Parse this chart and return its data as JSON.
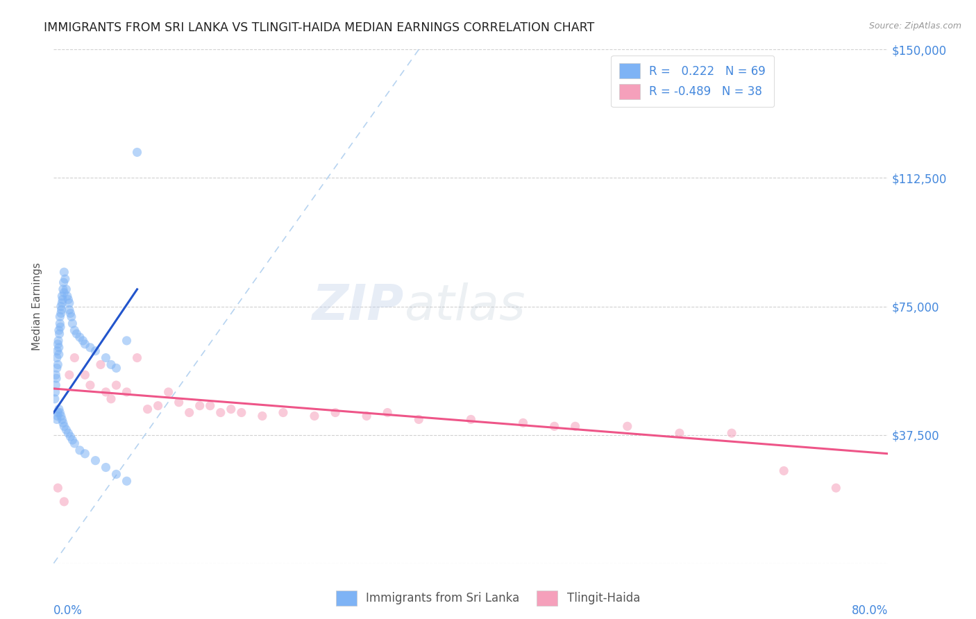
{
  "title": "IMMIGRANTS FROM SRI LANKA VS TLINGIT-HAIDA MEDIAN EARNINGS CORRELATION CHART",
  "source": "Source: ZipAtlas.com",
  "ylabel": "Median Earnings",
  "yticks": [
    0,
    37500,
    75000,
    112500,
    150000
  ],
  "ytick_labels": [
    "",
    "$37,500",
    "$75,000",
    "$112,500",
    "$150,000"
  ],
  "xmin": 0.0,
  "xmax": 80.0,
  "ymin": 0,
  "ymax": 150000,
  "legend_label1": "Immigrants from Sri Lanka",
  "legend_label2": "Tlingit-Haida",
  "R1": 0.222,
  "N1": 69,
  "R2": -0.489,
  "N2": 38,
  "color_blue": "#7EB3F5",
  "color_pink": "#F5A0BB",
  "color_blue_line": "#2255CC",
  "color_pink_line": "#EE5588",
  "color_diag_line": "#AACCEE",
  "title_color": "#222222",
  "axis_label_color": "#4488DD",
  "blue_dots_x": [
    0.1,
    0.15,
    0.2,
    0.2,
    0.25,
    0.3,
    0.3,
    0.35,
    0.4,
    0.4,
    0.45,
    0.5,
    0.5,
    0.5,
    0.55,
    0.6,
    0.6,
    0.65,
    0.7,
    0.7,
    0.75,
    0.8,
    0.8,
    0.85,
    0.9,
    0.95,
    1.0,
    1.0,
    1.1,
    1.2,
    1.3,
    1.4,
    1.5,
    1.5,
    1.6,
    1.7,
    1.8,
    2.0,
    2.2,
    2.5,
    2.8,
    3.0,
    3.5,
    4.0,
    5.0,
    5.5,
    6.0,
    7.0,
    0.3,
    0.35,
    0.4,
    0.5,
    0.6,
    0.7,
    0.8,
    0.9,
    1.0,
    1.2,
    1.4,
    1.6,
    1.8,
    2.0,
    2.5,
    3.0,
    4.0,
    5.0,
    6.0,
    7.0,
    8.0
  ],
  "blue_dots_y": [
    48000,
    50000,
    52000,
    55000,
    54000,
    57000,
    60000,
    62000,
    58000,
    64000,
    65000,
    63000,
    61000,
    68000,
    67000,
    70000,
    72000,
    69000,
    73000,
    75000,
    74000,
    76000,
    78000,
    77000,
    80000,
    82000,
    79000,
    85000,
    83000,
    80000,
    78000,
    77000,
    76000,
    74000,
    73000,
    72000,
    70000,
    68000,
    67000,
    66000,
    65000,
    64000,
    63000,
    62000,
    60000,
    58000,
    57000,
    65000,
    42000,
    43000,
    44000,
    45000,
    44000,
    43000,
    42000,
    41000,
    40000,
    39000,
    38000,
    37000,
    36000,
    35000,
    33000,
    32000,
    30000,
    28000,
    26000,
    24000,
    120000
  ],
  "pink_dots_x": [
    0.4,
    1.0,
    1.5,
    2.0,
    3.0,
    3.5,
    4.5,
    5.0,
    5.5,
    6.0,
    7.0,
    8.0,
    9.0,
    10.0,
    11.0,
    12.0,
    13.0,
    14.0,
    15.0,
    16.0,
    17.0,
    18.0,
    20.0,
    22.0,
    25.0,
    27.0,
    30.0,
    32.0,
    35.0,
    40.0,
    45.0,
    48.0,
    50.0,
    55.0,
    60.0,
    65.0,
    70.0,
    75.0
  ],
  "pink_dots_y": [
    22000,
    18000,
    55000,
    60000,
    55000,
    52000,
    58000,
    50000,
    48000,
    52000,
    50000,
    60000,
    45000,
    46000,
    50000,
    47000,
    44000,
    46000,
    46000,
    44000,
    45000,
    44000,
    43000,
    44000,
    43000,
    44000,
    43000,
    44000,
    42000,
    42000,
    41000,
    40000,
    40000,
    40000,
    38000,
    38000,
    27000,
    22000
  ],
  "blue_trend_x": [
    0.0,
    8.0
  ],
  "blue_trend_y": [
    44000,
    80000
  ],
  "pink_trend_x": [
    0.0,
    80.0
  ],
  "pink_trend_y": [
    51000,
    32000
  ],
  "diag_line_x": [
    0.0,
    35.0
  ],
  "diag_line_y": [
    0,
    150000
  ],
  "watermark_zip": "ZIP",
  "watermark_atlas": "atlas"
}
